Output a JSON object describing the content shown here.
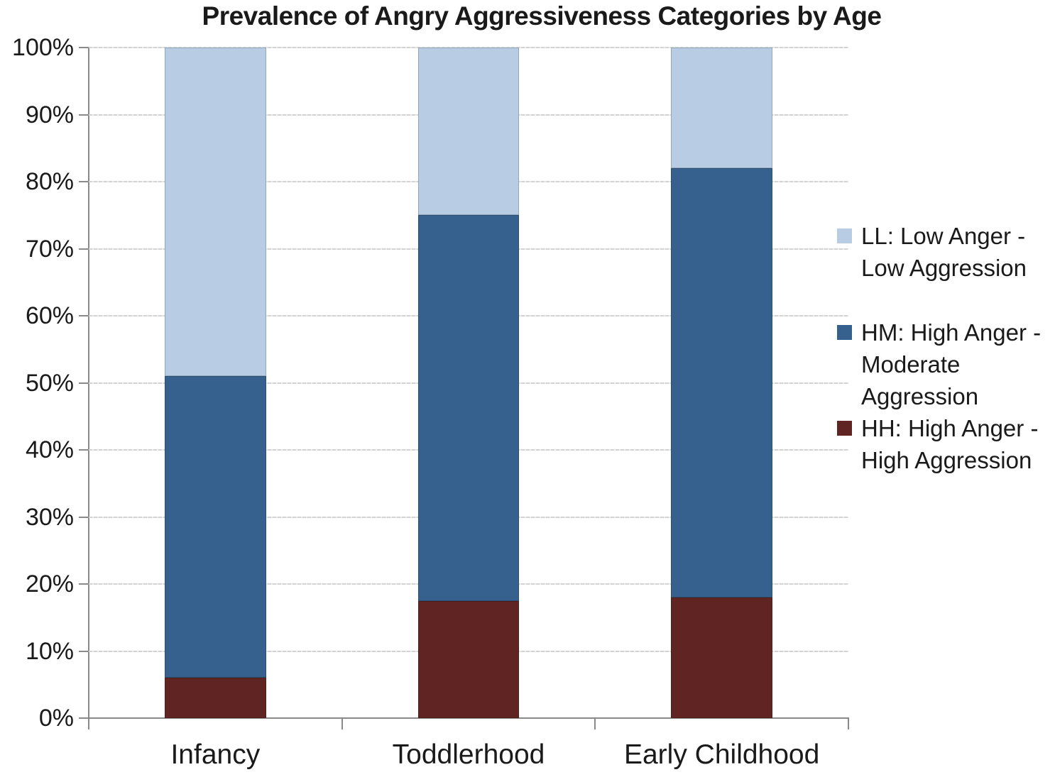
{
  "chart_data": {
    "type": "bar",
    "stacked": true,
    "title": "Prevalence of Angry Aggressiveness Categories by Age",
    "categories": [
      "Infancy",
      "Toddlerhood",
      "Early Childhood"
    ],
    "series": [
      {
        "name": "HH: High Anger - High Aggression",
        "abbr": "HH",
        "color": "#602523",
        "values": [
          6,
          17.5,
          18
        ]
      },
      {
        "name": "HM: High Anger - Moderate Aggression",
        "abbr": "HM",
        "color": "#36618E",
        "values": [
          45,
          57.5,
          64
        ]
      },
      {
        "name": "LL: Low Anger - Low Aggression",
        "abbr": "LL",
        "color": "#B8CCE4",
        "values": [
          49,
          25,
          18
        ]
      }
    ],
    "yticks": [
      {
        "label": "0%",
        "value": 0
      },
      {
        "label": "10%",
        "value": 10
      },
      {
        "label": "20%",
        "value": 20
      },
      {
        "label": "30%",
        "value": 30
      },
      {
        "label": "40%",
        "value": 40
      },
      {
        "label": "50%",
        "value": 50
      },
      {
        "label": "60%",
        "value": 60
      },
      {
        "label": "70%",
        "value": 70
      },
      {
        "label": "80%",
        "value": 80
      },
      {
        "label": "90%",
        "value": 90
      },
      {
        "label": "100%",
        "value": 100
      }
    ],
    "ylim": [
      0,
      100
    ],
    "xlabel": "",
    "ylabel": "",
    "grid": true,
    "legend_position": "right",
    "legend": {
      "entries": [
        {
          "label": "LL: Low Anger - Low Aggression",
          "color": "#B8CCE4"
        },
        {
          "label": "HM: High Anger - Moderate Aggression",
          "color": "#36618E"
        },
        {
          "label": "HH: High Anger - High Aggression",
          "color": "#602523"
        }
      ]
    },
    "colors": {
      "axis": "#8A8A8A",
      "grid": "#D5D5D5",
      "text": "#1A1A1A",
      "background": "#FFFFFF"
    }
  }
}
